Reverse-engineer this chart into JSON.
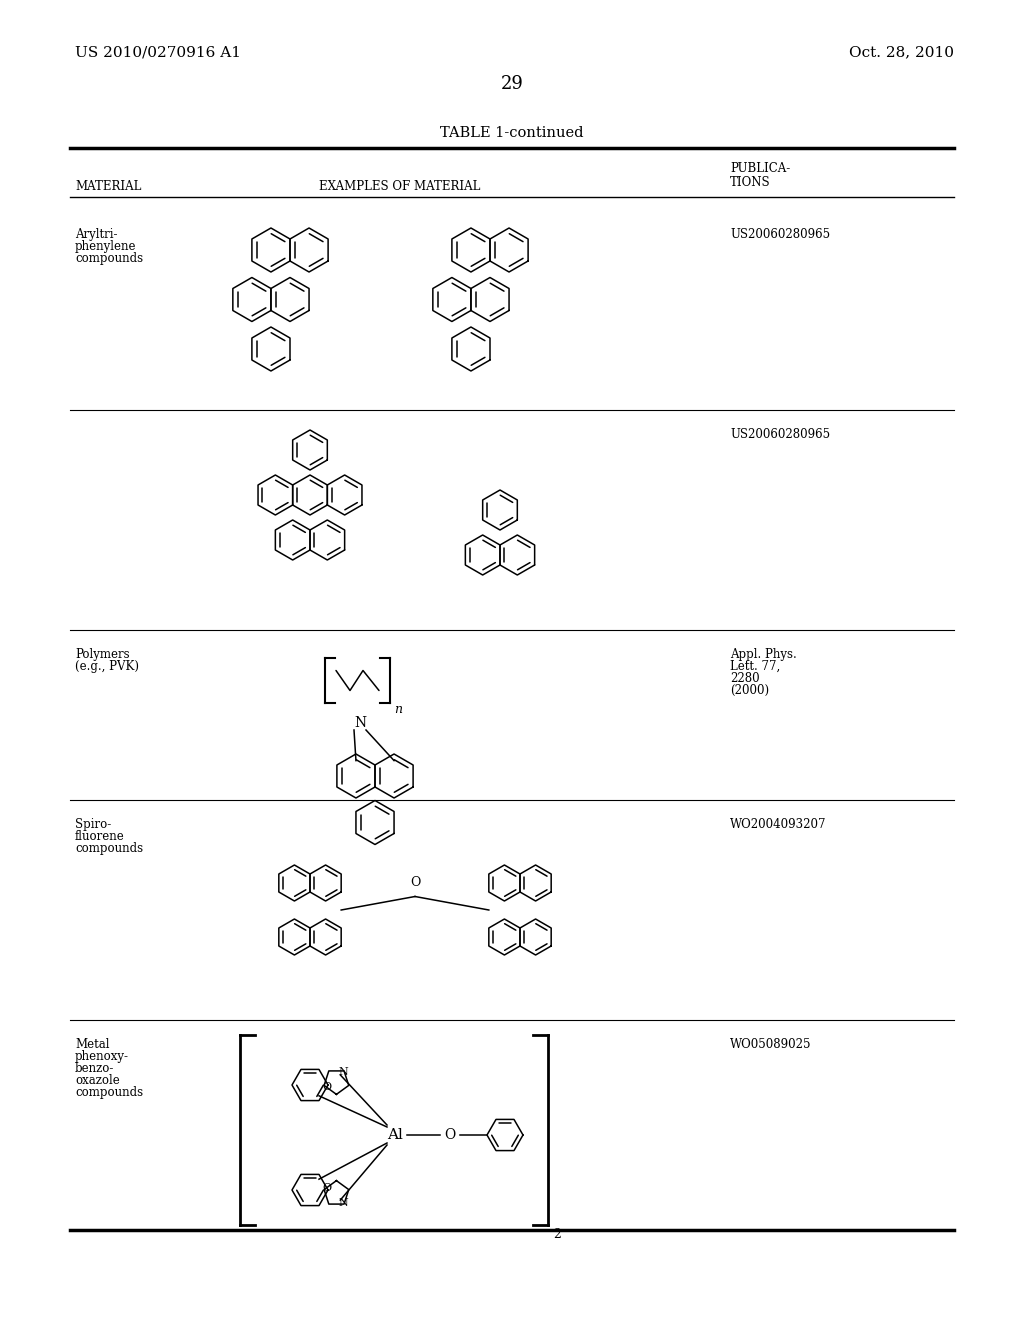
{
  "page_header_left": "US 2010/0270916 A1",
  "page_header_right": "Oct. 28, 2010",
  "page_number": "29",
  "table_title": "TABLE 1-continued",
  "col1_header_line1": "MATERIAL",
  "col2_header": "EXAMPLES OF MATERIAL",
  "col3_header_line1": "PUBLICA-",
  "col3_header_line2": "TIONS",
  "row1_mat_line1": "Aryltri-",
  "row1_mat_line2": "phenylene",
  "row1_mat_line3": "compounds",
  "row1_pub": "US20060280965",
  "row2_pub": "US20060280965",
  "row3_mat_line1": "Polymers",
  "row3_mat_line2": "(e.g., PVK)",
  "row3_pub_line1": "Appl. Phys.",
  "row3_pub_line2": "Lett. 77,",
  "row3_pub_line3": "2280",
  "row3_pub_line4": "(2000)",
  "row4_mat_line1": "Spiro-",
  "row4_mat_line2": "fluorene",
  "row4_mat_line3": "compounds",
  "row4_pub": "WO2004093207",
  "row5_mat_line1": "Metal",
  "row5_mat_line2": "phenoxy-",
  "row5_mat_line3": "benzo-",
  "row5_mat_line4": "oxazole",
  "row5_mat_line5": "compounds",
  "row5_pub": "WO05089025",
  "bg": "#ffffff",
  "fg": "#000000",
  "rule_thick": 2.5,
  "rule_thin": 1.0
}
